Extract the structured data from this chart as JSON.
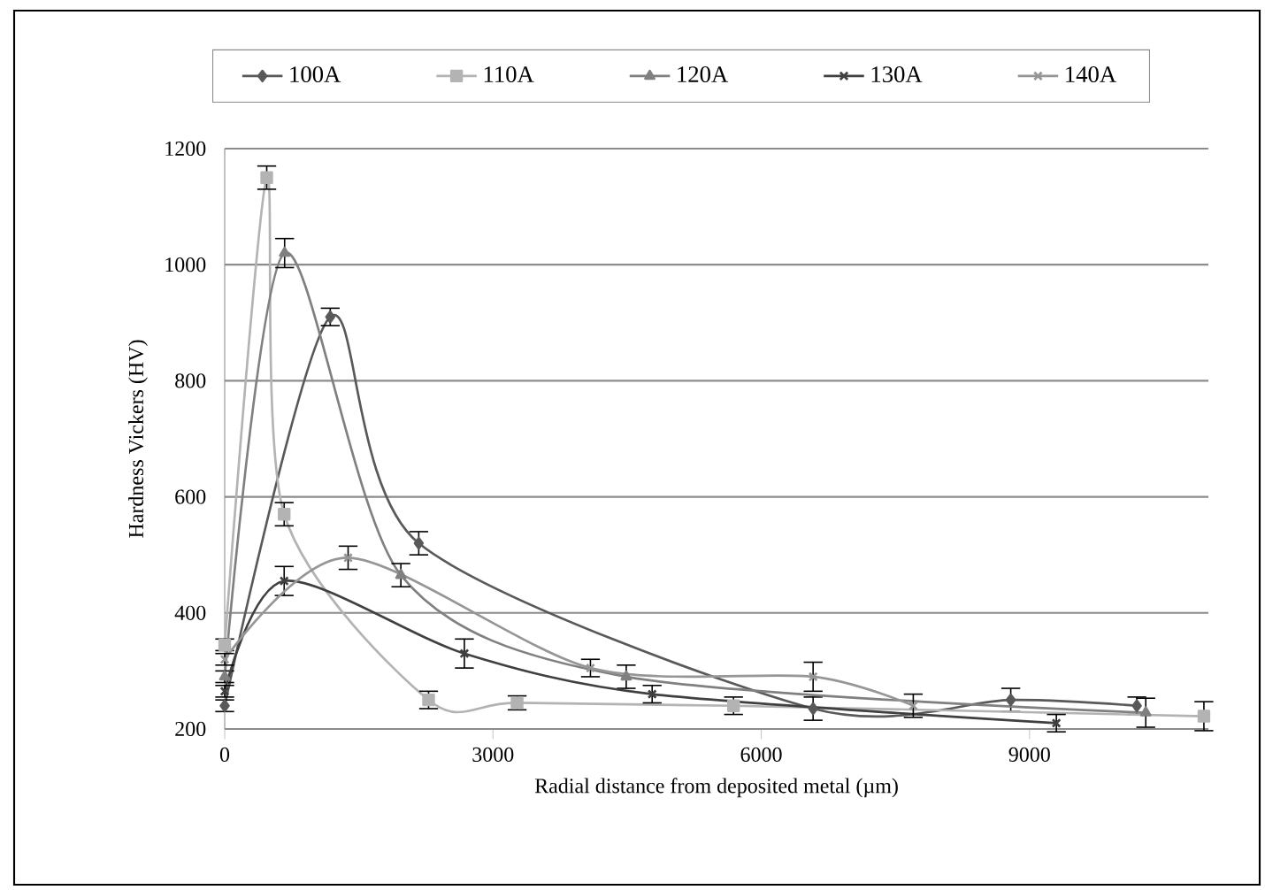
{
  "chart_data": {
    "type": "line",
    "xlabel": "Radial distance from deposited metal (µm)",
    "ylabel": "Hardness Vickers (HV)",
    "xlim": [
      0,
      11000
    ],
    "xticks": [
      0,
      3000,
      6000,
      9000
    ],
    "ylim": [
      200,
      1200
    ],
    "yticks": [
      200,
      400,
      600,
      800,
      1000,
      1200
    ],
    "grid": "y",
    "legend": "top",
    "line_style": "solid",
    "series": [
      {
        "name": "100A",
        "color": "#595959",
        "marker": "diamond",
        "x": [
          0,
          1180,
          2170,
          6580,
          8790,
          10200
        ],
        "values": [
          240,
          910,
          520,
          235,
          250,
          240
        ],
        "errors": [
          10,
          15,
          20,
          20,
          20,
          15
        ]
      },
      {
        "name": "110A",
        "color": "#b3b3b3",
        "marker": "square",
        "x": [
          0,
          470,
          665,
          2280,
          3270,
          5690,
          10950
        ],
        "values": [
          345,
          1150,
          570,
          250,
          245,
          240,
          222
        ],
        "errors": [
          10,
          20,
          20,
          15,
          12,
          15,
          25
        ]
      },
      {
        "name": "120A",
        "color": "#808080",
        "marker": "triangle",
        "x": [
          0,
          670,
          1970,
          4490,
          10300
        ],
        "values": [
          290,
          1020,
          465,
          290,
          228
        ],
        "errors": [
          10,
          25,
          20,
          20,
          25
        ]
      },
      {
        "name": "130A",
        "color": "#404040",
        "marker": "cross",
        "x": [
          0,
          665,
          2680,
          4780,
          9300
        ],
        "values": [
          265,
          455,
          330,
          260,
          210
        ],
        "errors": [
          10,
          25,
          25,
          15,
          15
        ]
      },
      {
        "name": "140A",
        "color": "#969696",
        "marker": "cross",
        "x": [
          0,
          1380,
          4090,
          6580,
          7700
        ],
        "values": [
          320,
          495,
          305,
          290,
          240
        ],
        "errors": [
          10,
          20,
          15,
          25,
          20
        ]
      }
    ]
  }
}
